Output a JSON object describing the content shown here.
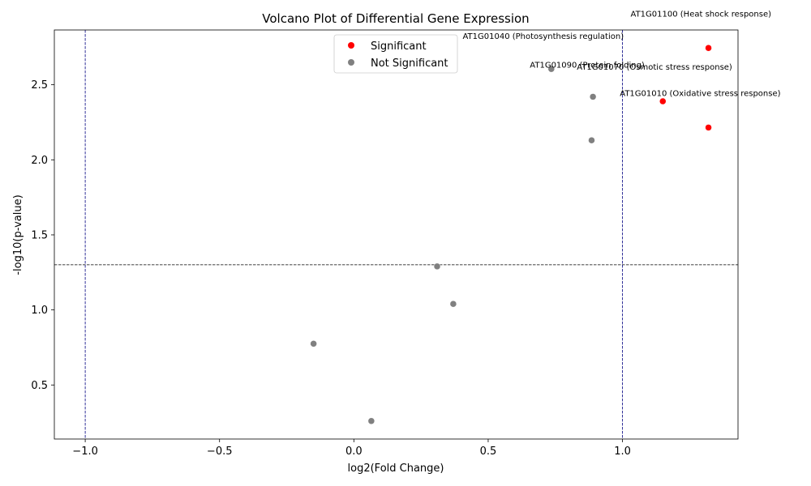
{
  "chart_data": {
    "type": "scatter",
    "title": "Volcano Plot of Differential Gene Expression",
    "xlabel": "log2(Fold Change)",
    "ylabel": "-log10(p-value)",
    "xlim": [
      -1.115,
      1.43
    ],
    "ylim": [
      0.14,
      2.865
    ],
    "xticks": [
      -1.0,
      -0.5,
      0.0,
      0.5,
      1.0
    ],
    "xtick_labels": [
      "−1.0",
      "−0.5",
      "0.0",
      "0.5",
      "1.0"
    ],
    "yticks": [
      0.5,
      1.0,
      1.5,
      2.0,
      2.5
    ],
    "ytick_labels": [
      "0.5",
      "1.0",
      "1.5",
      "2.0",
      "2.5"
    ],
    "grid": false,
    "legend_position": "top-center",
    "thresholds": {
      "pvalue_line_y": 1.301,
      "fold_change_lines_x": [
        -1.0,
        1.0
      ]
    },
    "colors": {
      "significant": "#ff0000",
      "not_significant": "#808080",
      "pvalue_line": "#000000",
      "fold_change_line": "#000080"
    },
    "series": [
      {
        "name": "Significant",
        "color": "#ff0000",
        "points": [
          {
            "x": 1.32,
            "y": 2.745
          },
          {
            "x": 1.15,
            "y": 2.39
          },
          {
            "x": 1.32,
            "y": 2.215
          }
        ]
      },
      {
        "name": "Not Significant",
        "color": "#808080",
        "points": [
          {
            "x": 0.735,
            "y": 2.605
          },
          {
            "x": 0.89,
            "y": 2.42
          },
          {
            "x": 0.885,
            "y": 2.13
          },
          {
            "x": 0.31,
            "y": 1.29
          },
          {
            "x": 0.37,
            "y": 1.04
          },
          {
            "x": -0.15,
            "y": 0.775
          },
          {
            "x": 0.065,
            "y": 0.26
          }
        ]
      }
    ],
    "annotations": [
      {
        "text": "AT1G01100 (Heat shock response)",
        "x": 1.03,
        "y": 2.955
      },
      {
        "text": "AT1G01040 (Photosynthesis regulation)",
        "x": 0.405,
        "y": 2.805
      },
      {
        "text": "AT1G01090 (Protein folding)",
        "x": 0.655,
        "y": 2.615
      },
      {
        "text": "AT1G01070 (Osmotic stress response)",
        "x": 0.83,
        "y": 2.6
      },
      {
        "text": "AT1G01010 (Oxidative stress response)",
        "x": 0.99,
        "y": 2.425
      }
    ],
    "legend": [
      {
        "label": "Significant",
        "color": "#ff0000"
      },
      {
        "label": "Not Significant",
        "color": "#808080"
      }
    ]
  }
}
